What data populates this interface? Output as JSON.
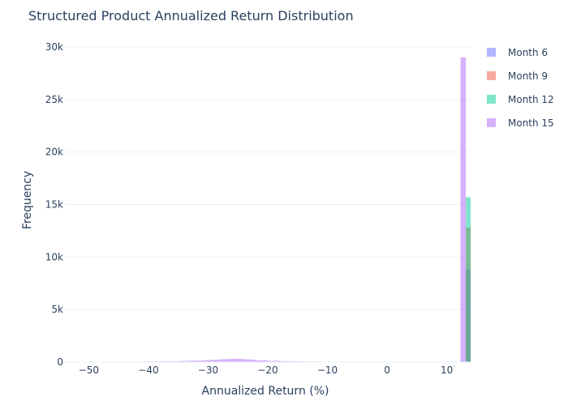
{
  "chart_data": {
    "type": "histogram",
    "title": "Structured Product Annualized Return Distribution",
    "xlabel": "Annualized Return (%)",
    "ylabel": "Frequency",
    "xlim": [
      -54,
      14
    ],
    "ylim": [
      0,
      30000
    ],
    "grid": "horizontal",
    "legend_position": "top-right",
    "bar_mode": "overlay",
    "x_ticks": [
      {
        "value": -50,
        "label": "−50"
      },
      {
        "value": -40,
        "label": "−40"
      },
      {
        "value": -30,
        "label": "−30"
      },
      {
        "value": -20,
        "label": "−20"
      },
      {
        "value": -10,
        "label": "−10"
      },
      {
        "value": 0,
        "label": "0"
      },
      {
        "value": 10,
        "label": "10"
      }
    ],
    "y_ticks": [
      {
        "value": 0,
        "label": "0"
      },
      {
        "value": 5000,
        "label": "5k"
      },
      {
        "value": 10000,
        "label": "10k"
      },
      {
        "value": 15000,
        "label": "15k"
      },
      {
        "value": 20000,
        "label": "20k"
      },
      {
        "value": 25000,
        "label": "25k"
      },
      {
        "value": 30000,
        "label": "30k"
      }
    ],
    "series": [
      {
        "name": "Month 6",
        "color": "#636efa",
        "bins": [
          {
            "x0": 13.2,
            "x1": 14.0,
            "count": 8800
          }
        ]
      },
      {
        "name": "Month 9",
        "color": "#ef553b",
        "bins": [
          {
            "x0": 13.2,
            "x1": 14.0,
            "count": 12800
          }
        ]
      },
      {
        "name": "Month 12",
        "color": "#00cc96",
        "bins": [
          {
            "x0": 13.2,
            "x1": 14.0,
            "count": 15700
          }
        ]
      },
      {
        "name": "Month 15",
        "color": "#ab63fa",
        "bins": [
          {
            "x0": -54,
            "x1": -50,
            "count": 10
          },
          {
            "x0": -50,
            "x1": -45,
            "count": 20
          },
          {
            "x0": -45,
            "x1": -41,
            "count": 40
          },
          {
            "x0": -41,
            "x1": -38,
            "count": 60
          },
          {
            "x0": -38,
            "x1": -35,
            "count": 80
          },
          {
            "x0": -35,
            "x1": -33,
            "count": 110
          },
          {
            "x0": -33,
            "x1": -31,
            "count": 140
          },
          {
            "x0": -31,
            "x1": -30,
            "count": 170
          },
          {
            "x0": -30,
            "x1": -29,
            "count": 200
          },
          {
            "x0": -29,
            "x1": -28,
            "count": 230
          },
          {
            "x0": -28,
            "x1": -27,
            "count": 260
          },
          {
            "x0": -27,
            "x1": -26,
            "count": 290
          },
          {
            "x0": -26,
            "x1": -25,
            "count": 310
          },
          {
            "x0": -25,
            "x1": -24,
            "count": 300
          },
          {
            "x0": -24,
            "x1": -23,
            "count": 260
          },
          {
            "x0": -23,
            "x1": -22,
            "count": 220
          },
          {
            "x0": -22,
            "x1": -20,
            "count": 170
          },
          {
            "x0": -20,
            "x1": -18,
            "count": 120
          },
          {
            "x0": -18,
            "x1": -16,
            "count": 90
          },
          {
            "x0": -16,
            "x1": -14,
            "count": 70
          },
          {
            "x0": -14,
            "x1": -11,
            "count": 50
          },
          {
            "x0": -11,
            "x1": -8,
            "count": 30
          },
          {
            "x0": -8,
            "x1": -4,
            "count": 20
          },
          {
            "x0": -4,
            "x1": 0,
            "count": 15
          },
          {
            "x0": 0,
            "x1": 4,
            "count": 12
          },
          {
            "x0": 4,
            "x1": 8,
            "count": 10
          },
          {
            "x0": 8,
            "x1": 12.3,
            "count": 10
          },
          {
            "x0": 12.3,
            "x1": 13.2,
            "count": 29000
          }
        ]
      }
    ]
  }
}
